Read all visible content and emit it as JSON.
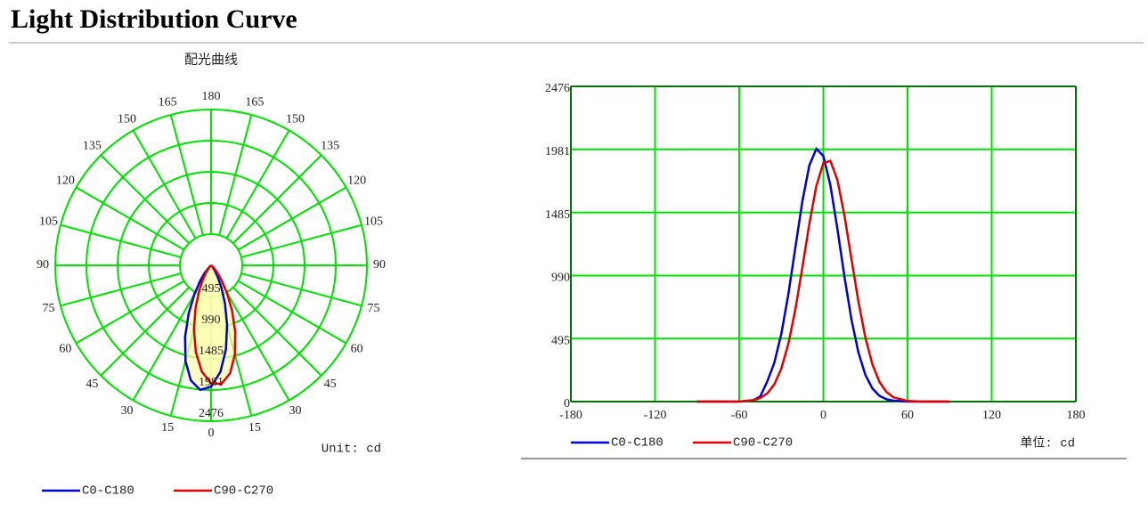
{
  "title": "Light Distribution Curve",
  "chart_data": [
    {
      "type": "polar",
      "title": "配光曲线",
      "unit_label": "Unit: cd",
      "rlim": [
        0,
        2476
      ],
      "rticks": [
        495,
        990,
        1485,
        1981,
        2476
      ],
      "angle_ticks": [
        0,
        15,
        30,
        45,
        60,
        75,
        90,
        105,
        120,
        135,
        150,
        165,
        180
      ],
      "grid": true,
      "grid_color": "#00e000",
      "fill_color": "#ffffb0",
      "x": [
        -90,
        -80,
        -70,
        -60,
        -50,
        -45,
        -40,
        -35,
        -30,
        -25,
        -20,
        -15,
        -10,
        -5,
        0,
        5,
        10,
        15,
        20,
        25,
        30,
        35,
        40,
        45,
        50,
        60,
        70,
        80,
        90
      ],
      "series": [
        {
          "name": "C0-C180",
          "color": "#0000cc",
          "values": [
            0,
            0,
            0,
            0,
            10,
            40,
            158,
            304,
            531,
            841,
            1207,
            1572,
            1855,
            1986,
            1929,
            1699,
            1357,
            983,
            646,
            385,
            208,
            102,
            45,
            18,
            7,
            0,
            0,
            0,
            0
          ]
        },
        {
          "name": "C90-C270",
          "color": "#dd0000",
          "values": [
            0,
            0,
            0,
            0,
            11,
            28,
            64,
            135,
            258,
            452,
            721,
            1052,
            1397,
            1694,
            1874,
            1891,
            1741,
            1463,
            1121,
            784,
            500,
            291,
            154,
            75,
            33,
            5,
            0,
            0,
            0
          ]
        }
      ]
    },
    {
      "type": "line",
      "unit_label": "单位: cd",
      "xlim": [
        -180,
        180
      ],
      "xticks": [
        -180,
        -120,
        -60,
        0,
        60,
        120,
        180
      ],
      "ylim": [
        0,
        2476
      ],
      "yticks": [
        0,
        495,
        990,
        1485,
        1981,
        2476
      ],
      "grid": true,
      "grid_color": "#00e000",
      "x": [
        -90,
        -80,
        -70,
        -60,
        -50,
        -45,
        -40,
        -35,
        -30,
        -25,
        -20,
        -15,
        -10,
        -5,
        0,
        5,
        10,
        15,
        20,
        25,
        30,
        35,
        40,
        45,
        50,
        60,
        70,
        80,
        90
      ],
      "series": [
        {
          "name": "C0-C180",
          "color": "#0000cc",
          "values": [
            0,
            0,
            0,
            0,
            10,
            40,
            158,
            304,
            531,
            841,
            1207,
            1572,
            1855,
            1986,
            1929,
            1699,
            1357,
            983,
            646,
            385,
            208,
            102,
            45,
            18,
            7,
            0,
            0,
            0,
            0
          ]
        },
        {
          "name": "C90-C270",
          "color": "#dd0000",
          "values": [
            0,
            0,
            0,
            0,
            11,
            28,
            64,
            135,
            258,
            452,
            721,
            1052,
            1397,
            1694,
            1874,
            1891,
            1741,
            1463,
            1121,
            784,
            500,
            291,
            154,
            75,
            33,
            5,
            0,
            0,
            0
          ]
        }
      ]
    }
  ]
}
